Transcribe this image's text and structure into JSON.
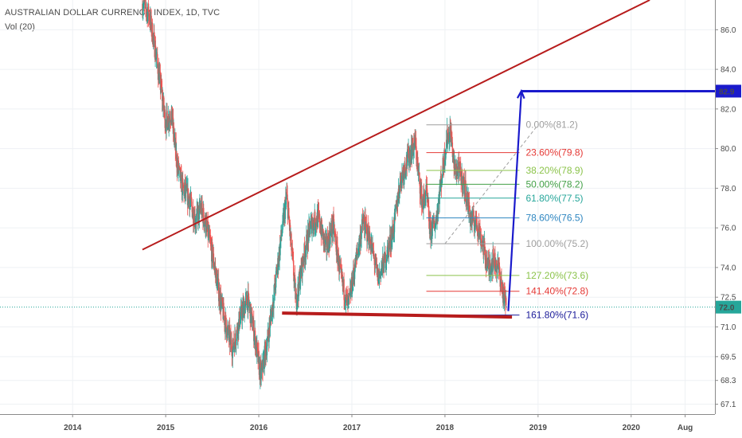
{
  "header": {
    "title": "AUSTRALIAN DOLLAR CURRENCY INDEX, 1D, TVC",
    "volume": "Vol (20)"
  },
  "colors": {
    "up": "#26a69a",
    "down": "#ef5350",
    "trendline": "#b71c1c",
    "arrow": "#1a1acc",
    "target_badge": "#1a1acc",
    "current_badge": "#26a69a",
    "axis_text": "#4a4a4a",
    "grid": "#eef1f4"
  },
  "chart_data": {
    "type": "candlestick",
    "title": "AUSTRALIAN DOLLAR CURRENCY INDEX, 1D, TVC",
    "x_ticks": [
      {
        "label": "2014",
        "t": 2014.0
      },
      {
        "label": "2015",
        "t": 2015.0
      },
      {
        "label": "2016",
        "t": 2016.0
      },
      {
        "label": "2017",
        "t": 2017.0
      },
      {
        "label": "2018",
        "t": 2018.0
      },
      {
        "label": "2019",
        "t": 2019.0
      },
      {
        "label": "2020",
        "t": 2020.0
      },
      {
        "label": "Aug",
        "t": 2020.58
      }
    ],
    "y_ticks": [
      67.1,
      68.3,
      69.5,
      71.0,
      72.5,
      74.0,
      76.0,
      78.0,
      80.0,
      82.0,
      84.0,
      86.0
    ],
    "x_range": [
      2013.22,
      2020.9
    ],
    "y_range": [
      66.6,
      87.5
    ],
    "grid": true,
    "price_path": [
      [
        2014.75,
        87.3
      ],
      [
        2014.82,
        86.8
      ],
      [
        2014.87,
        85.5
      ],
      [
        2014.95,
        83.0
      ],
      [
        2015.0,
        81.3
      ],
      [
        2015.06,
        81.8
      ],
      [
        2015.12,
        79.3
      ],
      [
        2015.18,
        78.0
      ],
      [
        2015.25,
        77.5
      ],
      [
        2015.32,
        76.4
      ],
      [
        2015.38,
        77.0
      ],
      [
        2015.45,
        75.8
      ],
      [
        2015.52,
        74.2
      ],
      [
        2015.58,
        72.5
      ],
      [
        2015.66,
        70.8
      ],
      [
        2015.72,
        69.9
      ],
      [
        2015.8,
        71.5
      ],
      [
        2015.88,
        72.4
      ],
      [
        2015.95,
        70.7
      ],
      [
        2016.02,
        68.5
      ],
      [
        2016.09,
        70.2
      ],
      [
        2016.16,
        72.5
      ],
      [
        2016.24,
        75.5
      ],
      [
        2016.3,
        77.6
      ],
      [
        2016.35,
        75.0
      ],
      [
        2016.4,
        72.3
      ],
      [
        2016.48,
        74.5
      ],
      [
        2016.56,
        76.2
      ],
      [
        2016.64,
        76.5
      ],
      [
        2016.72,
        75.0
      ],
      [
        2016.8,
        76.1
      ],
      [
        2016.88,
        73.5
      ],
      [
        2016.96,
        72.0
      ],
      [
        2017.05,
        74.5
      ],
      [
        2017.12,
        76.3
      ],
      [
        2017.2,
        75.3
      ],
      [
        2017.28,
        73.5
      ],
      [
        2017.36,
        74.4
      ],
      [
        2017.45,
        76.0
      ],
      [
        2017.52,
        78.4
      ],
      [
        2017.6,
        79.5
      ],
      [
        2017.68,
        80.3
      ],
      [
        2017.72,
        78.5
      ],
      [
        2017.76,
        77.2
      ],
      [
        2017.8,
        77.8
      ],
      [
        2017.84,
        75.8
      ],
      [
        2017.9,
        76.3
      ],
      [
        2017.95,
        78.1
      ],
      [
        2018.02,
        80.5
      ],
      [
        2018.06,
        80.9
      ],
      [
        2018.1,
        79.0
      ],
      [
        2018.16,
        78.8
      ],
      [
        2018.22,
        77.9
      ],
      [
        2018.28,
        76.4
      ],
      [
        2018.34,
        76.3
      ],
      [
        2018.4,
        75.3
      ],
      [
        2018.46,
        74.0
      ],
      [
        2018.52,
        74.4
      ],
      [
        2018.58,
        73.9
      ],
      [
        2018.63,
        72.5
      ],
      [
        2018.66,
        72.1
      ]
    ],
    "trendlines": [
      {
        "name": "resistance",
        "from": [
          2014.75,
          74.9
        ],
        "to": [
          2020.2,
          87.5
        ]
      },
      {
        "name": "support",
        "from": [
          2016.25,
          71.7
        ],
        "to": [
          2018.72,
          71.5
        ]
      }
    ],
    "target_arrow": {
      "from": [
        2018.68,
        71.8
      ],
      "to": [
        2018.82,
        82.9
      ]
    },
    "target_line": {
      "from": 2018.82,
      "value": 82.9
    },
    "retracement_diagonal": {
      "from": [
        2018.0,
        75.2
      ],
      "to": [
        2019.0,
        81.2
      ]
    },
    "fibonacci": {
      "x_start": 2017.8,
      "x_end": 2018.8,
      "levels": [
        {
          "label": "0.00%(81.2)",
          "value": 81.2,
          "color": "#9e9e9e"
        },
        {
          "label": "23.60%(79.8)",
          "value": 79.8,
          "color": "#e53935"
        },
        {
          "label": "38.20%(78.9)",
          "value": 78.9,
          "color": "#8bc34a"
        },
        {
          "label": "50.00%(78.2)",
          "value": 78.2,
          "color": "#43a047"
        },
        {
          "label": "61.80%(77.5)",
          "value": 77.5,
          "color": "#26a69a"
        },
        {
          "label": "78.60%(76.5)",
          "value": 76.5,
          "color": "#2e86c1"
        },
        {
          "label": "100.00%(75.2)",
          "value": 75.2,
          "color": "#9e9e9e"
        },
        {
          "label": "127.20%(73.6)",
          "value": 73.6,
          "color": "#8bc34a"
        },
        {
          "label": "141.40%(72.8)",
          "value": 72.8,
          "color": "#e53935"
        },
        {
          "label": "161.80%(71.6)",
          "value": 71.6,
          "color": "#1a1a99"
        }
      ]
    },
    "current_price": {
      "label": "72.0",
      "value": 72.0
    },
    "target_price": {
      "label": "82.9",
      "value": 82.9
    }
  }
}
